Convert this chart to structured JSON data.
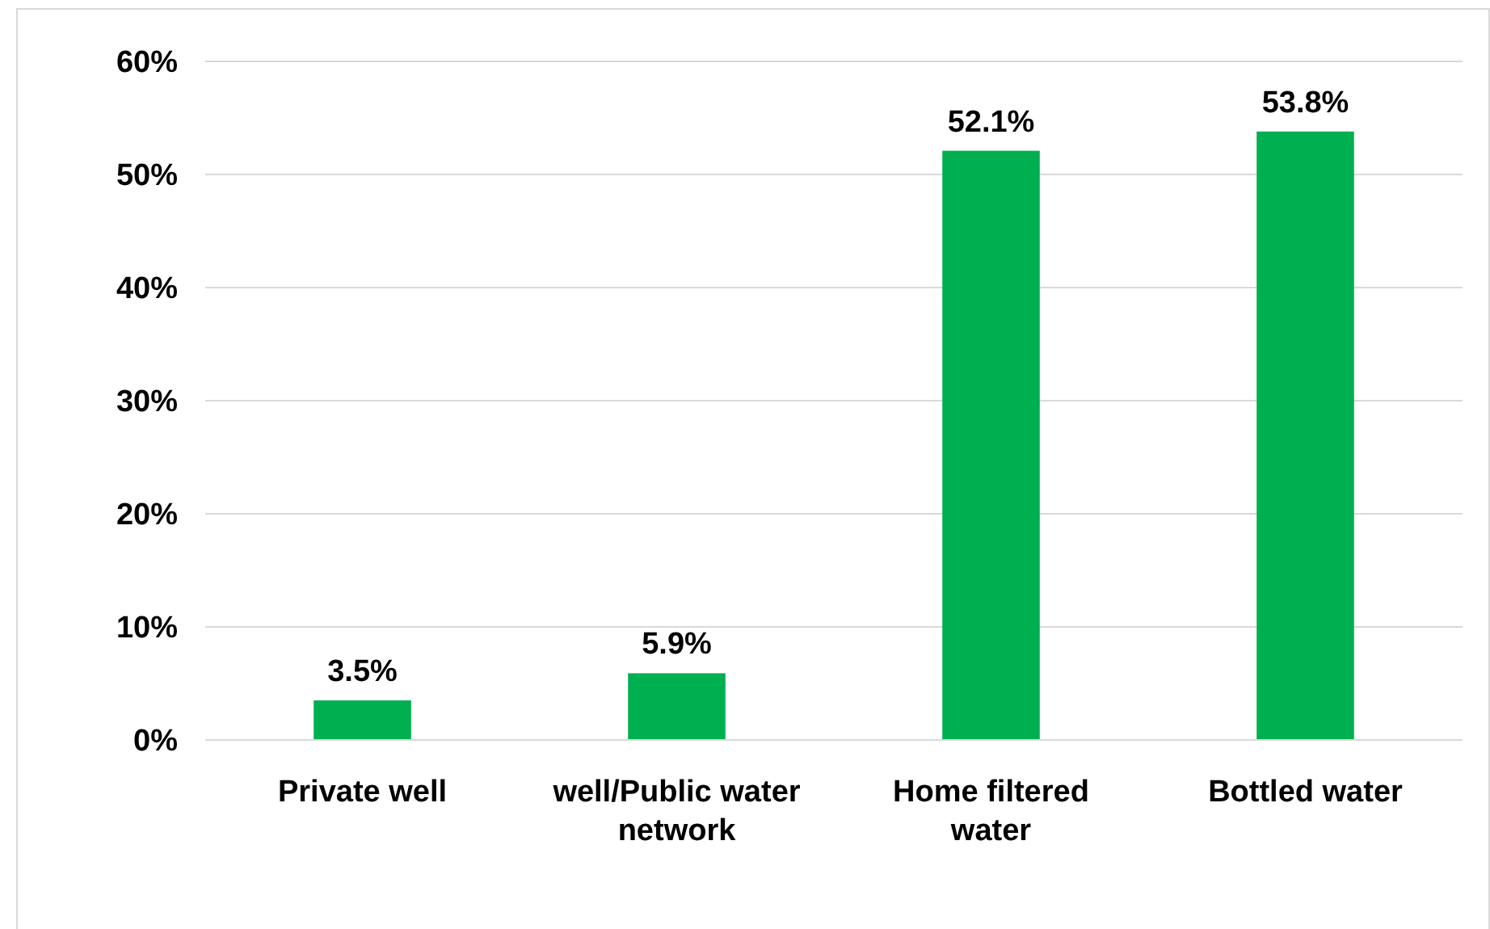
{
  "chart_data": {
    "type": "bar",
    "categories": [
      "Private well",
      "well/Public water network",
      "Home filtered water",
      "Bottled water"
    ],
    "values": [
      3.5,
      5.9,
      52.1,
      53.8
    ],
    "color": "#00b050",
    "value_labels": [
      "3.5%",
      "5.9%",
      "52.1%",
      "53.8%"
    ],
    "ylim": [
      0,
      60
    ],
    "yticks": [
      {
        "value": 0,
        "label": "0%"
      },
      {
        "value": 10,
        "label": "10%"
      },
      {
        "value": 20,
        "label": "20%"
      },
      {
        "value": 30,
        "label": "30%"
      },
      {
        "value": 40,
        "label": "40%"
      },
      {
        "value": 50,
        "label": "50%"
      },
      {
        "value": 60,
        "label": "60%"
      }
    ],
    "grid": "y"
  }
}
